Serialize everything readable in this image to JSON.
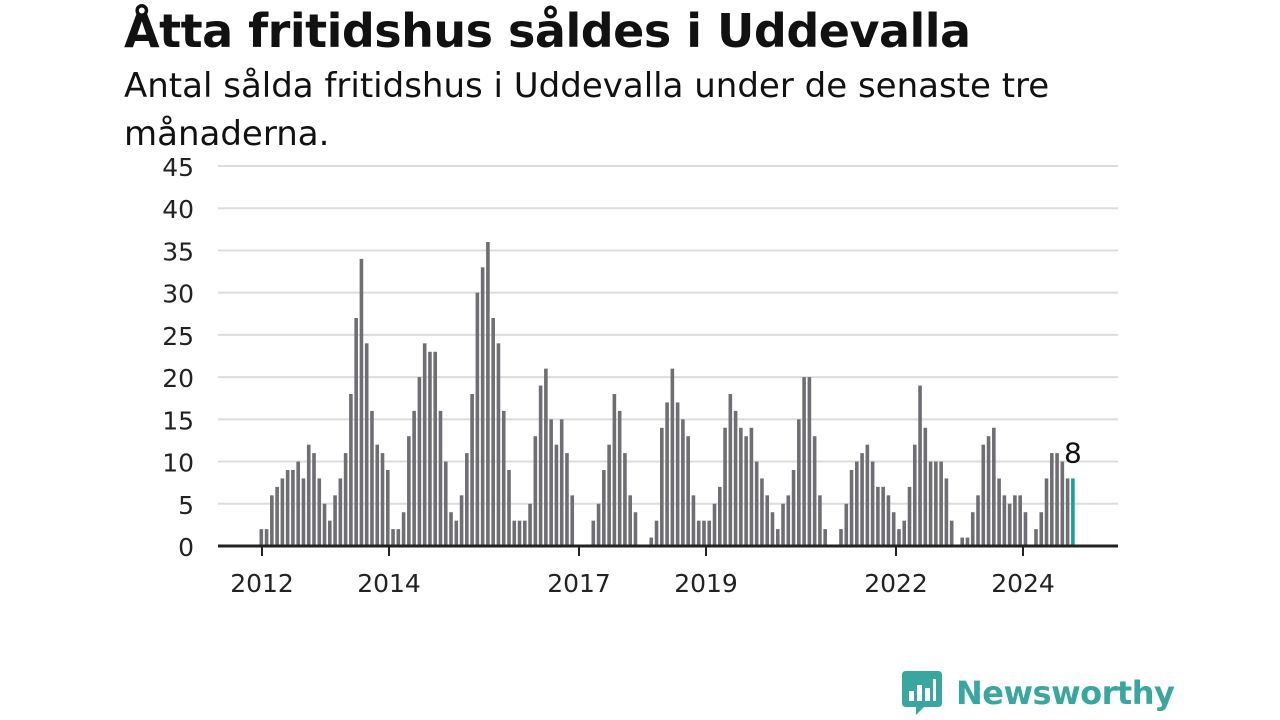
{
  "title": "Åtta fritidshus såldes i Uddevalla",
  "subtitle": "Antal sålda fritidshus i Uddevalla under de senaste tre månaderna.",
  "brand": {
    "name": "Newsworthy",
    "color": "#3aa6a0"
  },
  "colors": {
    "bar": "#6e6e73",
    "highlight": "#1a9e9a",
    "grid": "#dcdcdc",
    "axis": "#222222"
  },
  "chart_data": {
    "type": "bar",
    "ylim": [
      0,
      45
    ],
    "yticks": [
      0,
      5,
      10,
      15,
      20,
      25,
      30,
      35,
      40,
      45
    ],
    "xticks": [
      "2012",
      "2014",
      "2017",
      "2019",
      "2022",
      "2024"
    ],
    "highlight_label": "8",
    "series": [
      {
        "values": [
          2,
          2,
          6,
          7,
          8,
          9,
          9,
          10,
          8,
          12,
          11,
          8,
          5,
          3,
          6,
          8,
          11,
          18,
          27,
          34,
          24,
          16,
          12,
          11,
          9,
          2,
          2,
          4,
          13,
          16,
          20,
          24,
          23,
          23,
          16,
          10,
          4,
          3,
          6,
          11,
          18,
          30,
          33,
          36,
          27,
          24,
          16,
          9,
          3,
          3,
          3,
          5,
          13,
          19,
          21,
          15,
          12,
          15,
          11,
          6,
          0,
          0,
          0,
          3,
          5,
          9,
          12,
          18,
          16,
          11,
          6,
          4,
          0,
          0,
          1,
          3,
          14,
          17,
          21,
          17,
          15,
          13,
          6,
          3,
          3,
          3,
          5,
          7,
          14,
          18,
          16,
          14,
          13,
          14,
          10,
          8,
          6,
          4,
          2,
          5,
          6,
          9,
          15,
          20,
          20,
          13,
          6,
          2,
          0,
          0,
          2,
          5,
          9,
          10,
          11,
          12,
          10,
          7,
          7,
          6,
          4,
          2,
          3,
          7,
          12,
          19,
          14,
          10,
          10,
          10,
          8,
          3,
          0,
          1,
          1,
          4,
          6,
          12,
          13,
          14,
          8,
          6,
          5,
          6,
          6,
          4,
          0,
          2,
          4,
          8,
          11,
          11,
          10,
          8,
          8
        ]
      }
    ]
  }
}
